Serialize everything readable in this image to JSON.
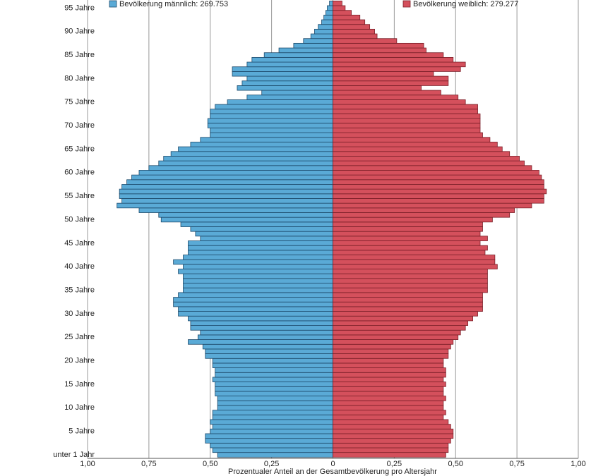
{
  "chart_data": {
    "type": "pyramid",
    "x_label": "Prozentualer Anteil an der Gesamtbevölkerung pro Altersjahr",
    "categories": [
      "unter 1 Jahr",
      null,
      null,
      null,
      null,
      "5 Jahre",
      null,
      null,
      null,
      null,
      "10 Jahre",
      null,
      null,
      null,
      null,
      "15 Jahre",
      null,
      null,
      null,
      null,
      "20 Jahre",
      null,
      null,
      null,
      null,
      "25 Jahre",
      null,
      null,
      null,
      null,
      "30 Jahre",
      null,
      null,
      null,
      null,
      "35 Jahre",
      null,
      null,
      null,
      null,
      "40 Jahre",
      null,
      null,
      null,
      null,
      "45 Jahre",
      null,
      null,
      null,
      null,
      "50 Jahre",
      null,
      null,
      null,
      null,
      "55 Jahre",
      null,
      null,
      null,
      null,
      "60 Jahre",
      null,
      null,
      null,
      null,
      "65 Jahre",
      null,
      null,
      null,
      null,
      "70 Jahre",
      null,
      null,
      null,
      null,
      "75 Jahre",
      null,
      null,
      null,
      null,
      "80 Jahre",
      null,
      null,
      null,
      null,
      "85 Jahre",
      null,
      null,
      null,
      null,
      "90 Jahre",
      null,
      null,
      null,
      null,
      "95 Jahre",
      null
    ],
    "series": [
      {
        "name": "Bevölkerung männlich: 269.753",
        "color": "#5aaad6",
        "edge": "#1d4a6b",
        "values": [
          0.47,
          0.49,
          0.5,
          0.52,
          0.52,
          0.5,
          0.49,
          0.5,
          0.49,
          0.49,
          0.47,
          0.47,
          0.47,
          0.48,
          0.48,
          0.48,
          0.49,
          0.48,
          0.48,
          0.49,
          0.49,
          0.52,
          0.52,
          0.53,
          0.59,
          0.55,
          0.54,
          0.58,
          0.58,
          0.59,
          0.63,
          0.63,
          0.65,
          0.65,
          0.63,
          0.61,
          0.61,
          0.61,
          0.61,
          0.63,
          0.61,
          0.65,
          0.61,
          0.59,
          0.59,
          0.59,
          0.54,
          0.56,
          0.58,
          0.62,
          0.7,
          0.71,
          0.79,
          0.88,
          0.86,
          0.87,
          0.87,
          0.86,
          0.84,
          0.82,
          0.79,
          0.75,
          0.71,
          0.69,
          0.66,
          0.63,
          0.58,
          0.54,
          0.5,
          0.5,
          0.51,
          0.51,
          0.5,
          0.5,
          0.48,
          0.43,
          0.35,
          0.29,
          0.39,
          0.37,
          0.35,
          0.41,
          0.41,
          0.35,
          0.33,
          0.28,
          0.22,
          0.16,
          0.12,
          0.09,
          0.075,
          0.06,
          0.046,
          0.037,
          0.029,
          0.023,
          0.014
        ]
      },
      {
        "name": "Bevölkerung weiblich: 279.277",
        "color": "#d4505c",
        "edge": "#7a1f28",
        "values": [
          0.46,
          0.47,
          0.47,
          0.48,
          0.49,
          0.49,
          0.48,
          0.47,
          0.45,
          0.46,
          0.45,
          0.45,
          0.46,
          0.45,
          0.45,
          0.46,
          0.45,
          0.46,
          0.46,
          0.45,
          0.45,
          0.47,
          0.47,
          0.48,
          0.49,
          0.51,
          0.52,
          0.54,
          0.55,
          0.57,
          0.59,
          0.61,
          0.61,
          0.61,
          0.61,
          0.63,
          0.63,
          0.63,
          0.63,
          0.63,
          0.67,
          0.66,
          0.66,
          0.62,
          0.63,
          0.6,
          0.63,
          0.6,
          0.61,
          0.61,
          0.65,
          0.72,
          0.74,
          0.81,
          0.86,
          0.86,
          0.87,
          0.86,
          0.86,
          0.85,
          0.84,
          0.81,
          0.78,
          0.76,
          0.72,
          0.69,
          0.67,
          0.64,
          0.61,
          0.6,
          0.6,
          0.6,
          0.6,
          0.59,
          0.59,
          0.54,
          0.51,
          0.44,
          0.36,
          0.47,
          0.47,
          0.41,
          0.52,
          0.54,
          0.49,
          0.45,
          0.38,
          0.37,
          0.26,
          0.18,
          0.17,
          0.15,
          0.13,
          0.11,
          0.075,
          0.05,
          0.037
        ]
      }
    ],
    "xlim": [
      -1,
      1
    ],
    "xticks": [
      {
        "value": -1,
        "label": "1,00"
      },
      {
        "value": -0.75,
        "label": "0,75"
      },
      {
        "value": -0.5,
        "label": "0,50"
      },
      {
        "value": -0.25,
        "label": "0,25"
      },
      0,
      {
        "value": 0.25,
        "label": "0,25"
      },
      {
        "value": 0.5,
        "label": "0,50"
      },
      {
        "value": 0.75,
        "label": "0,75"
      },
      {
        "value": 1,
        "label": "1,00"
      }
    ],
    "grid": true
  }
}
